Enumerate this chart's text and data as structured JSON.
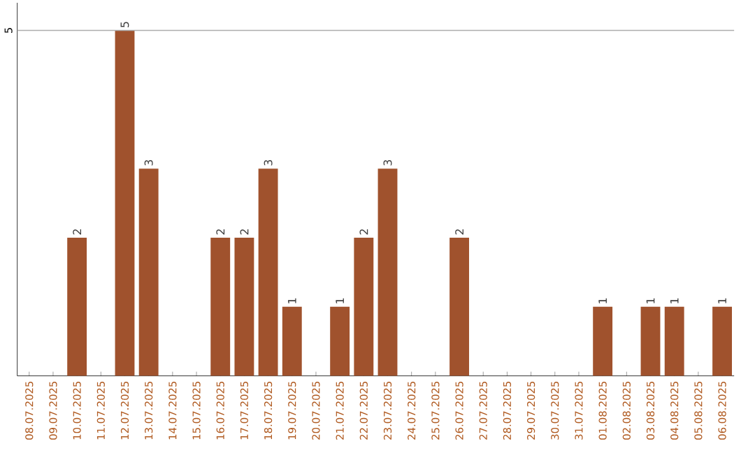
{
  "chart_data": {
    "type": "bar",
    "categories": [
      "08.07.2025",
      "09.07.2025",
      "10.07.2025",
      "11.07.2025",
      "12.07.2025",
      "13.07.2025",
      "14.07.2025",
      "15.07.2025",
      "16.07.2025",
      "17.07.2025",
      "18.07.2025",
      "19.07.2025",
      "20.07.2025",
      "21.07.2025",
      "22.07.2025",
      "23.07.2025",
      "24.07.2025",
      "25.07.2025",
      "26.07.2025",
      "27.07.2025",
      "28.07.2025",
      "29.07.2025",
      "30.07.2025",
      "31.07.2025",
      "01.08.2025",
      "02.08.2025",
      "03.08.2025",
      "04.08.2025",
      "05.08.2025",
      "06.08.2025"
    ],
    "values": [
      0,
      0,
      2,
      0,
      5,
      3,
      0,
      0,
      2,
      2,
      3,
      1,
      0,
      1,
      2,
      3,
      0,
      0,
      2,
      0,
      0,
      0,
      0,
      0,
      1,
      0,
      1,
      1,
      0,
      1
    ],
    "value_labels": [
      null,
      null,
      "2",
      null,
      "5",
      "3",
      null,
      null,
      "2",
      "2",
      "3",
      "1",
      null,
      "1",
      "2",
      "3",
      null,
      null,
      "2",
      null,
      null,
      null,
      null,
      null,
      "1",
      null,
      "1",
      "1",
      null,
      "1"
    ],
    "color": "#a0522d",
    "ylim": [
      0,
      5.4
    ],
    "yticks": [
      5
    ],
    "grid": "y"
  }
}
